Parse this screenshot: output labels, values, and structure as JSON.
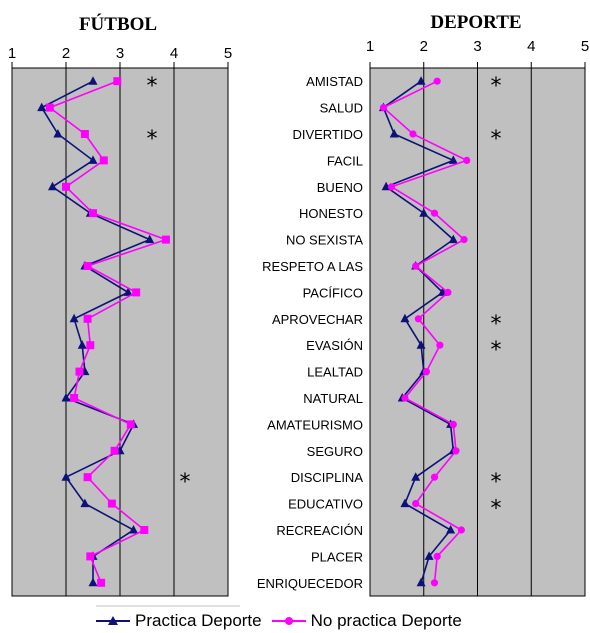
{
  "chart_data": [
    {
      "type": "line",
      "title": "FÚTBOL",
      "xlim": [
        1,
        5
      ],
      "x_ticks": [
        "1",
        "2",
        "3",
        "4",
        "5"
      ],
      "categories": [
        "AMISTAD",
        "SALUD",
        "DIVERTIDO",
        "FACIL",
        "BUENO",
        "HONESTO",
        "NO SEXISTA",
        "RESPETO A LAS",
        "PACÍFICO",
        "APROVECHAR",
        "EVASIÓN",
        "LEALTAD",
        "NATURAL",
        "AMATEURISMO",
        "SEGURO",
        "DISCIPLINA",
        "EDUCATIVO",
        "RECREACIÓN",
        "PLACER",
        "ENRIQUECEDOR"
      ],
      "series": [
        {
          "name": "Practica Deporte",
          "color": "#0d1278",
          "marker": "triangle",
          "values": [
            2.5,
            1.55,
            1.85,
            2.5,
            1.75,
            2.45,
            3.55,
            2.35,
            3.15,
            2.15,
            2.3,
            2.35,
            2.0,
            3.25,
            3.0,
            2.0,
            2.35,
            3.25,
            2.5,
            2.5
          ]
        },
        {
          "name": "No practica Deporte",
          "color": "#ff00ff",
          "marker": "square",
          "values": [
            2.95,
            1.7,
            2.35,
            2.7,
            2.0,
            2.5,
            3.85,
            2.4,
            3.3,
            2.4,
            2.45,
            2.25,
            2.15,
            3.2,
            2.9,
            2.4,
            2.85,
            3.45,
            2.45,
            2.65
          ]
        }
      ],
      "significant": [
        "AMISTAD",
        "DIVERTIDO",
        "DISCIPLINA"
      ],
      "significance_marker": "*",
      "grid": true,
      "background": "#c0c0c0"
    },
    {
      "type": "line",
      "title": "DEPORTE",
      "xlim": [
        1,
        5
      ],
      "x_ticks": [
        "1",
        "2",
        "3",
        "4",
        "5"
      ],
      "categories": [
        "AMISTAD",
        "SALUD",
        "DIVERTIDO",
        "FACIL",
        "BUENO",
        "HONESTO",
        "NO SEXISTA",
        "RESPETO A LAS",
        "PACÍFICO",
        "APROVECHAR",
        "EVASIÓN",
        "LEALTAD",
        "NATURAL",
        "AMATEURISMO",
        "SEGURO",
        "DISCIPLINA",
        "EDUCATIVO",
        "RECREACIÓN",
        "PLACER",
        "ENRIQUECEDOR"
      ],
      "series": [
        {
          "name": "Practica Deporte",
          "color": "#0d1278",
          "marker": "triangle",
          "values": [
            1.95,
            1.25,
            1.45,
            2.55,
            1.3,
            2.0,
            2.55,
            1.85,
            2.35,
            1.65,
            1.95,
            2.0,
            1.6,
            2.5,
            2.55,
            1.85,
            1.65,
            2.5,
            2.1,
            1.95
          ]
        },
        {
          "name": "No practica Deporte",
          "color": "#ff00ff",
          "marker": "circle",
          "values": [
            2.25,
            1.25,
            1.8,
            2.8,
            1.4,
            2.2,
            2.75,
            1.85,
            2.45,
            1.9,
            2.3,
            2.05,
            1.65,
            2.55,
            2.6,
            2.2,
            1.85,
            2.7,
            2.25,
            2.2
          ]
        }
      ],
      "significant": [
        "AMISTAD",
        "DIVERTIDO",
        "APROVECHAR",
        "EVASIÓN",
        "DISCIPLINA",
        "EDUCATIVO"
      ],
      "significance_marker": "*",
      "grid": true,
      "background": "#c0c0c0"
    }
  ],
  "legend": {
    "placement": "bottom",
    "items": [
      {
        "label": "Practica Deporte",
        "color": "#0d1278",
        "marker": "triangle"
      },
      {
        "label": "No practica Deporte",
        "color": "#ff00ff",
        "marker": "circle"
      }
    ]
  }
}
